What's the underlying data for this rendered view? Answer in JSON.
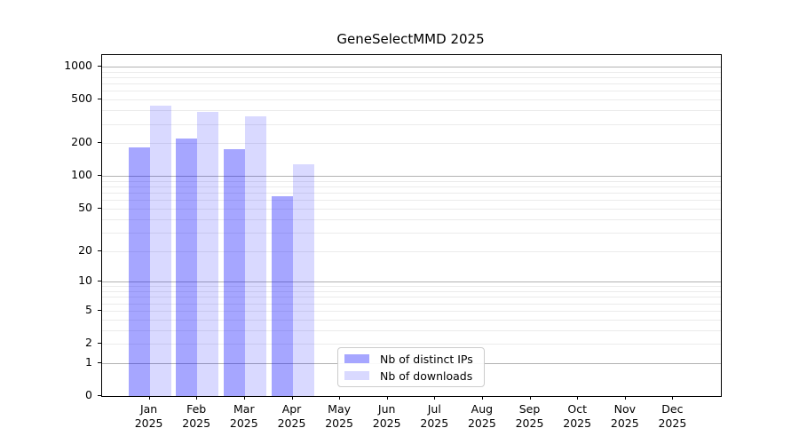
{
  "chart_data": {
    "type": "bar",
    "title": "GeneSelectMMD 2025",
    "categories": [
      "Jan",
      "Feb",
      "Mar",
      "Apr",
      "May",
      "Jun",
      "Jul",
      "Aug",
      "Sep",
      "Oct",
      "Nov",
      "Dec"
    ],
    "category_year": "2025",
    "series": [
      {
        "name": "Nb of distinct IPs",
        "color": "rgba(0,0,255,0.35)",
        "values": [
          183,
          220,
          175,
          65,
          0,
          0,
          0,
          0,
          0,
          0,
          0,
          0
        ]
      },
      {
        "name": "Nb of downloads",
        "color": "rgba(0,0,255,0.15)",
        "values": [
          440,
          385,
          350,
          128,
          0,
          0,
          0,
          0,
          0,
          0,
          0,
          0
        ]
      }
    ],
    "xlabel": "",
    "ylabel": "",
    "y_scale": "log1p",
    "ylim": [
      0,
      1275
    ],
    "y_ticks_labeled": [
      0,
      1,
      2,
      5,
      10,
      20,
      50,
      100,
      200,
      500,
      1000
    ],
    "y_major_gridlines": [
      1,
      10,
      100,
      1000
    ],
    "y_minor_gridlines": [
      2,
      3,
      4,
      5,
      6,
      7,
      8,
      9,
      20,
      30,
      40,
      50,
      60,
      70,
      80,
      90,
      200,
      300,
      400,
      500,
      600,
      700,
      800,
      900
    ],
    "grid": "horizontal",
    "legend_position": "lower center",
    "colors": {
      "grid_major": "#b2b2b2",
      "grid_minor": "#ebebeb",
      "spine": "#000000",
      "legend_border": "#cccccc",
      "background": "#ffffff"
    }
  }
}
